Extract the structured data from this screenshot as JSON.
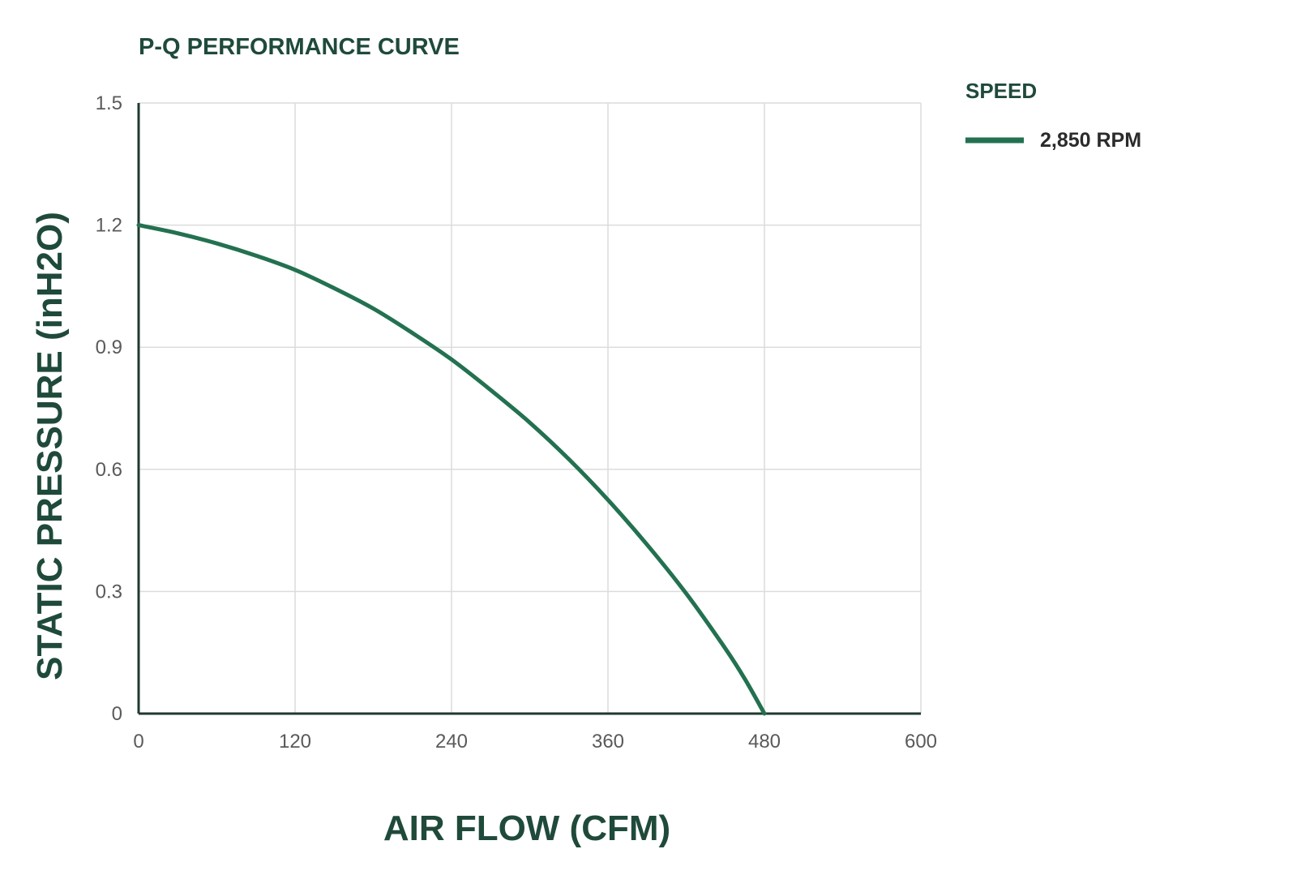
{
  "colors": {
    "title": "#1f4a3a",
    "series": "#237150",
    "grid": "#dcdcdc",
    "axis": "#1f3a2e"
  },
  "chart_data": {
    "type": "line",
    "title": "P-Q PERFORMANCE CURVE",
    "xlabel": "AIR FLOW (CFM)",
    "ylabel": "STATIC PRESSURE (inH2O)",
    "xlim": [
      0,
      600
    ],
    "ylim": [
      0,
      1.5
    ],
    "xticks": [
      0,
      120,
      240,
      360,
      480,
      600
    ],
    "yticks": [
      0,
      0.3,
      0.6,
      0.9,
      1.2,
      1.5
    ],
    "xtick_labels": [
      "0",
      "120",
      "240",
      "360",
      "480",
      "600"
    ],
    "ytick_labels": [
      "0",
      "0.3",
      "0.6",
      "0.9",
      "1.2",
      "1.5"
    ],
    "grid": true,
    "legend": {
      "title": "SPEED",
      "position": "right"
    },
    "series": [
      {
        "name": "2,850 RPM",
        "x": [
          0,
          30,
          60,
          90,
          120,
          150,
          180,
          210,
          240,
          270,
          300,
          330,
          360,
          390,
          420,
          450,
          465,
          480
        ],
        "y": [
          1.2,
          1.18,
          1.155,
          1.125,
          1.09,
          1.045,
          0.995,
          0.935,
          0.87,
          0.795,
          0.715,
          0.625,
          0.525,
          0.415,
          0.295,
          0.16,
          0.085,
          0.0
        ]
      }
    ]
  }
}
